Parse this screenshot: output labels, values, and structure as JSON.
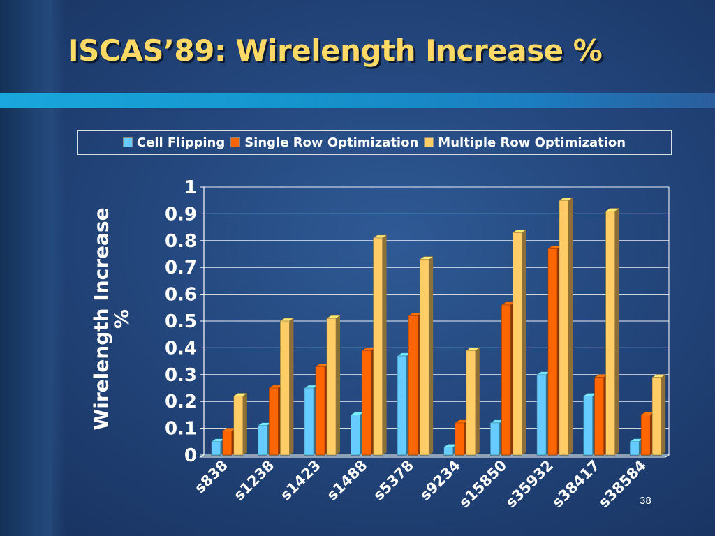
{
  "slide": {
    "title": "ISCAS’89: Wirelength Increase %",
    "number": "38"
  },
  "chart_data": {
    "type": "bar",
    "title": "ISCAS’89: Wirelength Increase %",
    "xlabel": "",
    "ylabel": "Wirelength Increase %",
    "ylim": [
      0,
      1
    ],
    "yticks": [
      "0",
      "0.1",
      "0.2",
      "0.3",
      "0.4",
      "0.5",
      "0.6",
      "0.7",
      "0.8",
      "0.9",
      "1"
    ],
    "grid": true,
    "legend_position": "top",
    "categories": [
      "s838",
      "s1238",
      "s1423",
      "s1488",
      "s5378",
      "s9234",
      "s15850",
      "s35932",
      "s38417",
      "s38584"
    ],
    "series": [
      {
        "name": "Cell Flipping",
        "color": "#66ccff",
        "values": [
          0.05,
          0.11,
          0.25,
          0.15,
          0.37,
          0.03,
          0.12,
          0.3,
          0.22,
          0.05
        ]
      },
      {
        "name": "Single Row Optimization",
        "color": "#ff6600",
        "values": [
          0.09,
          0.25,
          0.33,
          0.39,
          0.52,
          0.12,
          0.56,
          0.77,
          0.29,
          0.15
        ]
      },
      {
        "name": "Multiple Row Optimization",
        "color": "#ffcc66",
        "values": [
          0.22,
          0.5,
          0.51,
          0.81,
          0.73,
          0.39,
          0.83,
          0.95,
          0.91,
          0.29
        ]
      }
    ]
  }
}
